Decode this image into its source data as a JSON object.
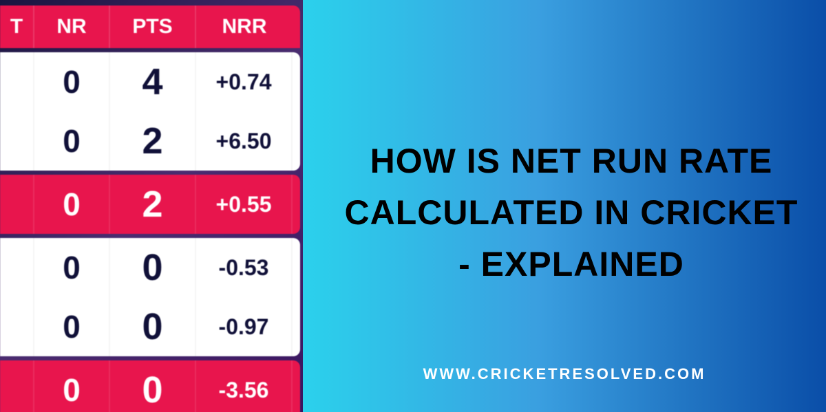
{
  "table": {
    "headers": {
      "t": "T",
      "nr": "NR",
      "pts": "PTS",
      "nrr": "NRR"
    },
    "rows": [
      {
        "t": "",
        "nr": "0",
        "pts": "4",
        "nrr": "+0.74",
        "hl": false,
        "group": 0
      },
      {
        "t": "",
        "nr": "0",
        "pts": "2",
        "nrr": "+6.50",
        "hl": false,
        "group": 0
      },
      {
        "t": "",
        "nr": "0",
        "pts": "2",
        "nrr": "+0.55",
        "hl": true,
        "group": 1
      },
      {
        "t": "",
        "nr": "0",
        "pts": "0",
        "nrr": "-0.53",
        "hl": false,
        "group": 2
      },
      {
        "t": "",
        "nr": "0",
        "pts": "0",
        "nrr": "-0.97",
        "hl": false,
        "group": 2
      },
      {
        "t": "",
        "nr": "0",
        "pts": "0",
        "nrr": "-3.56",
        "hl": true,
        "group": 3
      }
    ],
    "colors": {
      "highlight_bg": "#e8154d",
      "white_bg": "#ffffff",
      "text_dark": "#101038",
      "text_light": "#ffffff",
      "panel_bg": "#2c1a55"
    }
  },
  "right": {
    "title_l1": "HOW IS NET RUN RATE",
    "title_l2": "CALCULATED IN CRICKET",
    "title_l3": "- EXPLAINED",
    "url": "WWW.CRICKETRESOLVED.COM",
    "gradient_from": "#2bd1ec",
    "gradient_to": "#0a4ea8",
    "title_color": "#000000",
    "url_color": "#ffffff"
  }
}
